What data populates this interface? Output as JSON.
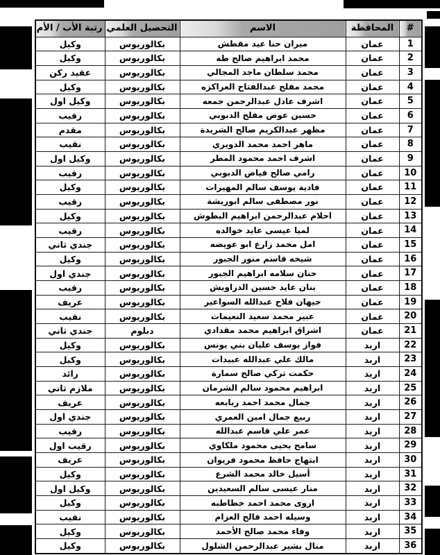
{
  "table": {
    "columns": [
      {
        "key": "num",
        "label": "#"
      },
      {
        "key": "governorate",
        "label": "المحافظة"
      },
      {
        "key": "name",
        "label": "الاسم"
      },
      {
        "key": "education",
        "label": "التحصيل العلمي"
      },
      {
        "key": "rank",
        "label": "رتبة الأب / الأم"
      }
    ],
    "rows": [
      {
        "num": "1",
        "governorate": "عمان",
        "name": "ميران حنا عيد مقطش",
        "education": "بكالوريوس",
        "rank": "وكيل"
      },
      {
        "num": "2",
        "governorate": "عمان",
        "name": "محمد ابراهيم صالح طه",
        "education": "بكالوريوس",
        "rank": "وكيل"
      },
      {
        "num": "3",
        "governorate": "عمان",
        "name": "محمد سلطان ماجد المجالي",
        "education": "بكالوريوس",
        "rank": "عقيد ركن"
      },
      {
        "num": "4",
        "governorate": "عمان",
        "name": "محمد مفلح عبدالفتاح العراكزه",
        "education": "بكالوريوس",
        "rank": "وكيل"
      },
      {
        "num": "5",
        "governorate": "عمان",
        "name": "اشرف عادل عبدالرحمن جمعه",
        "education": "بكالوريوس",
        "rank": "وكيل اول"
      },
      {
        "num": "6",
        "governorate": "عمان",
        "name": "حسين عوض مفلح الدبوبي",
        "education": "بكالوريوس",
        "rank": "رقيب"
      },
      {
        "num": "7",
        "governorate": "عمان",
        "name": "مظهر عبدالكريم صالح الشريدة",
        "education": "بكالوريوس",
        "rank": "مقدم"
      },
      {
        "num": "8",
        "governorate": "عمان",
        "name": "ماهر احمد محمد الدويري",
        "education": "بكالوريوس",
        "rank": "نقيب"
      },
      {
        "num": "9",
        "governorate": "عمان",
        "name": "اشرف احمد محمود المطر",
        "education": "بكالوريوس",
        "rank": "وكيل اول"
      },
      {
        "num": "10",
        "governorate": "عمان",
        "name": "رامي صالح فياض الدبوبي",
        "education": "بكالوريوس",
        "rank": "رقيب"
      },
      {
        "num": "11",
        "governorate": "عمان",
        "name": "فادية يوسف سالم المهيرات",
        "education": "بكالوريوس",
        "rank": "وكيل"
      },
      {
        "num": "12",
        "governorate": "عمان",
        "name": "نور مصطفى سالم ابوريشة",
        "education": "بكالوريوس",
        "rank": "رقيب"
      },
      {
        "num": "13",
        "governorate": "عمان",
        "name": "احلام عبدالرحمن ابراهيم البطوش",
        "education": "بكالوريوس",
        "rank": "وكيل"
      },
      {
        "num": "14",
        "governorate": "عمان",
        "name": "لميا عيسى عايد خوالده",
        "education": "بكالوريوس",
        "rank": "رقيب"
      },
      {
        "num": "15",
        "governorate": "عمان",
        "name": "امل محمد زارع ابو عويضه",
        "education": "بكالوريوس",
        "rank": "جندي ثاني"
      },
      {
        "num": "16",
        "governorate": "عمان",
        "name": "شيخه قاسم منور الجبور",
        "education": "بكالوريوس",
        "rank": "وكيل"
      },
      {
        "num": "17",
        "governorate": "عمان",
        "name": "حنان سلامه ابراهيم الجبور",
        "education": "بكالوريوس",
        "rank": "جندي اول"
      },
      {
        "num": "18",
        "governorate": "عمان",
        "name": "بنان عايد حسين الدراويش",
        "education": "بكالوريوس",
        "rank": "رقيب"
      },
      {
        "num": "19",
        "governorate": "عمان",
        "name": "جيهان فلاح عبدالله السواعير",
        "education": "بكالوريوس",
        "rank": "عريف"
      },
      {
        "num": "20",
        "governorate": "عمان",
        "name": "عبير محمد سعيد النعيمات",
        "education": "بكالوريوس",
        "rank": "نقيب"
      },
      {
        "num": "21",
        "governorate": "عمان",
        "name": "اشراق ابراهيم محمد مقدادي",
        "education": "دبلوم",
        "rank": "جندي ثاني"
      },
      {
        "num": "22",
        "governorate": "اربد",
        "name": "فواز يوسف عليان بني يونس",
        "education": "بكالوريوس",
        "rank": "وكيل"
      },
      {
        "num": "23",
        "governorate": "اربد",
        "name": "مالك علي عبدالله عبيدات",
        "education": "بكالوريوس",
        "rank": "وكيل"
      },
      {
        "num": "24",
        "governorate": "اربد",
        "name": "حكمت تركي صالح سمارة",
        "education": "بكالوريوس",
        "rank": "رائد"
      },
      {
        "num": "25",
        "governorate": "اربد",
        "name": "ابراهيم محمود سالم الشرمان",
        "education": "بكالوريوس",
        "rank": "ملازم ثاني"
      },
      {
        "num": "26",
        "governorate": "اربد",
        "name": "جمال محمد احمد ربابعه",
        "education": "بكالوريوس",
        "rank": "عريف"
      },
      {
        "num": "27",
        "governorate": "اربد",
        "name": "ربيع جمال امين العمري",
        "education": "بكالوريوس",
        "rank": "جندي اول"
      },
      {
        "num": "28",
        "governorate": "اربد",
        "name": "عمر علي قاسم عبدالله",
        "education": "بكالوريوس",
        "rank": "رقيب"
      },
      {
        "num": "29",
        "governorate": "اربد",
        "name": "سامح يحيى محمود ملكاوي",
        "education": "بكالوريوس",
        "rank": "رقيب اول"
      },
      {
        "num": "30",
        "governorate": "اربد",
        "name": "ابتهاج حافظ محمود فريوان",
        "education": "بكالوريوس",
        "rank": "عريف"
      },
      {
        "num": "31",
        "governorate": "اربد",
        "name": "أسيل خالد محمد الشرع",
        "education": "بكالوريوس",
        "rank": "وكيل"
      },
      {
        "num": "32",
        "governorate": "اربد",
        "name": "منار عيسى سالم السعيدين",
        "education": "بكالوريوس",
        "rank": "وكيل اول"
      },
      {
        "num": "33",
        "governorate": "اربد",
        "name": "اروى محمد احمد خطاطبه",
        "education": "بكالوريوس",
        "rank": "وكيل"
      },
      {
        "num": "34",
        "governorate": "اربد",
        "name": "وسيله احمد فالح العزام",
        "education": "بكالوريوس",
        "rank": "نقيب"
      },
      {
        "num": "35",
        "governorate": "اربد",
        "name": "وفاء محمد صالح الأحمد",
        "education": "بكالوريوس",
        "rank": "وكيل"
      },
      {
        "num": "36",
        "governorate": "اربد",
        "name": "منال بشير عبدالرحمن الشلول",
        "education": "بكالوريوس",
        "rank": "وكيل"
      }
    ]
  },
  "colors": {
    "header_gray": "#9f9f9f",
    "header_light": "#ededed",
    "grid": "#1a1a1a",
    "page_bg": "#ffffff",
    "artifact": "#000000"
  }
}
